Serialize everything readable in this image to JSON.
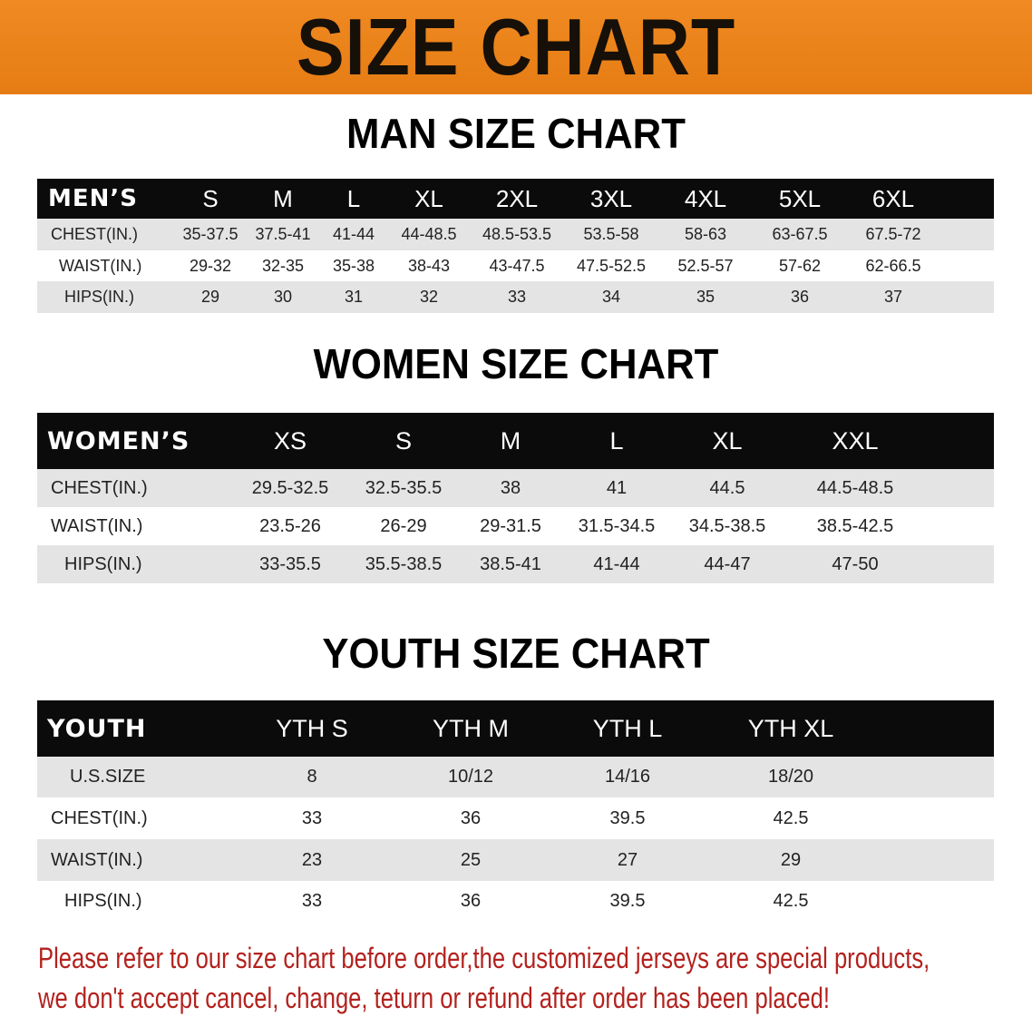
{
  "banner": {
    "title": "SIZE CHART",
    "color": "#ec8318"
  },
  "men": {
    "title": "MAN SIZE CHART",
    "header": [
      "MEN’S",
      "S",
      "M",
      "L",
      "XL",
      "2XL",
      "3XL",
      "4XL",
      "5XL",
      "6XL"
    ],
    "rows": [
      [
        "CHEST(IN.)",
        "35-37.5",
        "37.5-41",
        "41-44",
        "44-48.5",
        "48.5-53.5",
        "53.5-58",
        "58-63",
        "63-67.5",
        "67.5-72"
      ],
      [
        "WAIST(IN.)",
        "29-32",
        "32-35",
        "35-38",
        "38-43",
        "43-47.5",
        "47.5-52.5",
        "52.5-57",
        "57-62",
        "62-66.5"
      ],
      [
        "HIPS(IN.)",
        "29",
        "30",
        "31",
        "32",
        "33",
        "34",
        "35",
        "36",
        "37"
      ]
    ]
  },
  "women": {
    "title": "WOMEN SIZE CHART",
    "header": [
      "WOMEN’S",
      "XS",
      "S",
      "M",
      "L",
      "XL",
      "XXL"
    ],
    "rows": [
      [
        "CHEST(IN.)",
        "29.5-32.5",
        "32.5-35.5",
        "38",
        "41",
        "44.5",
        "44.5-48.5"
      ],
      [
        "WAIST(IN.)",
        "23.5-26",
        "26-29",
        "29-31.5",
        "31.5-34.5",
        "34.5-38.5",
        "38.5-42.5"
      ],
      [
        "HIPS(IN.)",
        "33-35.5",
        "35.5-38.5",
        "38.5-41",
        "41-44",
        "44-47",
        "47-50"
      ]
    ]
  },
  "youth": {
    "title": "YOUTH SIZE CHART",
    "header": [
      "YOUTH",
      "YTH S",
      "YTH M",
      "YTH L",
      "YTH XL"
    ],
    "rows": [
      [
        "U.S.SIZE",
        "8",
        "10/12",
        "14/16",
        "18/20"
      ],
      [
        "CHEST(IN.)",
        "33",
        "36",
        "39.5",
        "42.5"
      ],
      [
        "WAIST(IN.)",
        "23",
        "25",
        "27",
        "29"
      ],
      [
        "HIPS(IN.)",
        "33",
        "36",
        "39.5",
        "42.5"
      ]
    ]
  },
  "notice": {
    "line1": "Please refer to our size chart before order,the customized jerseys are special products,",
    "line2": "we don't accept cancel, change, teturn or refund after order has been placed!",
    "color": "#b3221e"
  }
}
